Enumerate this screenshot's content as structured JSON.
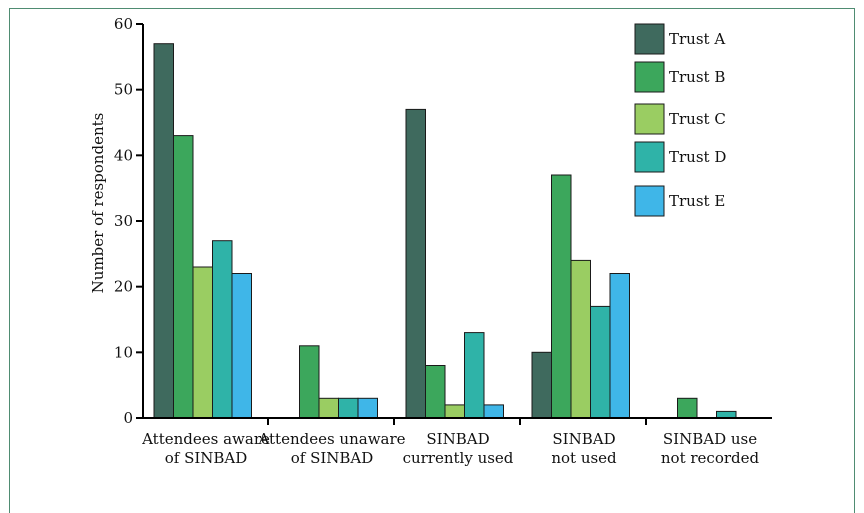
{
  "chart_data": {
    "type": "bar",
    "title": "",
    "xlabel": "",
    "ylabel": "Number of respondents",
    "ylim": [
      0,
      60
    ],
    "yticks": [
      0,
      10,
      20,
      30,
      40,
      50,
      60
    ],
    "grid": false,
    "legend_position": "top-right",
    "categories": [
      [
        "Attendees aware",
        "of SINBAD"
      ],
      [
        "Attendees unaware",
        "of SINBAD"
      ],
      [
        "SINBAD",
        "currently used"
      ],
      [
        "SINBAD",
        "not used"
      ],
      [
        "SINBAD use",
        "not recorded"
      ]
    ],
    "series": [
      {
        "name": "Trust A",
        "color": "#3f6a5e",
        "values": [
          57,
          0,
          47,
          10,
          0
        ]
      },
      {
        "name": "Trust B",
        "color": "#3ca75c",
        "values": [
          43,
          11,
          8,
          37,
          3
        ]
      },
      {
        "name": "Trust C",
        "color": "#9acd62",
        "values": [
          23,
          3,
          2,
          24,
          0
        ]
      },
      {
        "name": "Trust D",
        "color": "#2fb3a8",
        "values": [
          27,
          3,
          13,
          17,
          1
        ]
      },
      {
        "name": "Trust E",
        "color": "#3fb6e8",
        "values": [
          22,
          3,
          2,
          22,
          0
        ]
      }
    ]
  }
}
